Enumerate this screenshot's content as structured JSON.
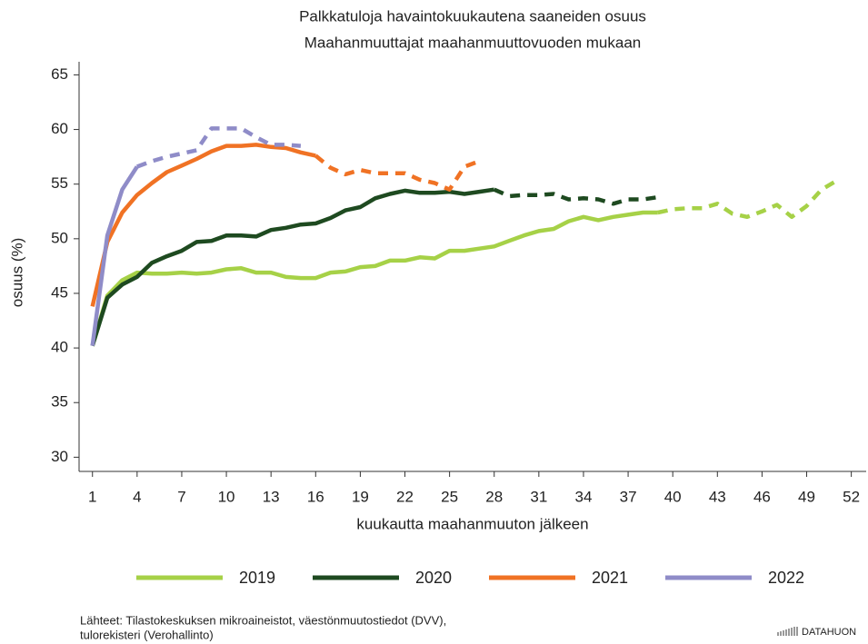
{
  "chart_data": {
    "type": "line",
    "title": "Palkkatuloja havaintokuukautena saaneiden osuus",
    "subtitle": "Maahanmuuttajat maahanmuuttovuoden mukaan",
    "x_label": "kuukautta maahanmuuton jälkeen",
    "y_label": "osuus (%)",
    "x": [
      1,
      2,
      3,
      4,
      5,
      6,
      7,
      8,
      9,
      10,
      11,
      12,
      13,
      14,
      15,
      16,
      17,
      18,
      19,
      20,
      21,
      22,
      23,
      24,
      25,
      26,
      27,
      28,
      29,
      30,
      31,
      32,
      33,
      34,
      35,
      36,
      37,
      38,
      39,
      40,
      41,
      42,
      43,
      44,
      45,
      46,
      47,
      48,
      49,
      50,
      51
    ],
    "xlim": [
      0.1,
      53
    ],
    "xticks": [
      1,
      4,
      7,
      10,
      13,
      16,
      19,
      22,
      25,
      28,
      31,
      34,
      37,
      40,
      43,
      46,
      49,
      52
    ],
    "ylim": [
      28.7,
      66.2
    ],
    "yticks": [
      30,
      35,
      40,
      45,
      50,
      55,
      60,
      65
    ],
    "legend": "bottom",
    "series": [
      {
        "name": "2019",
        "color": "#a6d147",
        "dash_from": 39,
        "values": [
          40.2,
          44.8,
          46.2,
          46.9,
          46.8,
          46.8,
          46.9,
          46.8,
          46.9,
          47.2,
          47.3,
          46.9,
          46.9,
          46.5,
          46.4,
          46.4,
          46.9,
          47.0,
          47.4,
          47.5,
          48.0,
          48.0,
          48.3,
          48.2,
          48.9,
          48.9,
          49.1,
          49.3,
          49.8,
          50.3,
          50.7,
          50.9,
          51.6,
          52.0,
          51.7,
          52.0,
          52.2,
          52.4,
          52.4,
          52.7,
          52.8,
          52.8,
          53.2,
          52.3,
          52.0,
          52.5,
          53.1,
          52.0,
          53.0,
          54.5,
          55.3
        ]
      },
      {
        "name": "2020",
        "color": "#1e4a20",
        "dash_from": 28,
        "values": [
          40.2,
          44.6,
          45.8,
          46.5,
          47.8,
          48.4,
          48.9,
          49.7,
          49.8,
          50.3,
          50.3,
          50.2,
          50.8,
          51.0,
          51.3,
          51.4,
          51.9,
          52.6,
          52.9,
          53.7,
          54.1,
          54.4,
          54.2,
          54.2,
          54.3,
          54.1,
          54.3,
          54.5,
          53.9,
          54.0,
          54.0,
          54.1,
          53.6,
          53.7,
          53.6,
          53.2,
          53.6,
          53.6,
          53.8,
          null,
          null,
          null,
          null,
          null,
          null,
          null,
          null,
          null,
          null,
          null,
          null
        ]
      },
      {
        "name": "2021",
        "color": "#f07224",
        "dash_from": 16,
        "values": [
          43.8,
          49.7,
          52.4,
          54.0,
          55.1,
          56.1,
          56.7,
          57.3,
          58.0,
          58.5,
          58.5,
          58.6,
          58.4,
          58.3,
          57.9,
          57.6,
          56.5,
          55.9,
          56.3,
          56.0,
          56.0,
          56.0,
          55.4,
          55.1,
          54.5,
          56.6,
          57.1,
          null,
          null,
          null,
          null,
          null,
          null,
          null,
          null,
          null,
          null,
          null,
          null,
          null,
          null,
          null,
          null,
          null,
          null,
          null,
          null,
          null,
          null,
          null,
          null
        ]
      },
      {
        "name": "2022",
        "color": "#8f8cc8",
        "dash_from": 4,
        "values": [
          40.2,
          50.3,
          54.5,
          56.6,
          57.1,
          57.5,
          57.8,
          58.1,
          60.1,
          60.1,
          60.1,
          59.3,
          58.6,
          58.6,
          58.5,
          null,
          null,
          null,
          null,
          null,
          null,
          null,
          null,
          null,
          null,
          null,
          null,
          null,
          null,
          null,
          null,
          null,
          null,
          null,
          null,
          null,
          null,
          null,
          null,
          null,
          null,
          null,
          null,
          null,
          null,
          null,
          null,
          null,
          null,
          null,
          null
        ]
      }
    ],
    "source": [
      "Lähteet: Tilastokeskuksen mikroaineistot, väestönmuutostiedot (DVV),",
      "tulorekisteri (Verohallinto)"
    ],
    "logo": "DATAHUON"
  }
}
